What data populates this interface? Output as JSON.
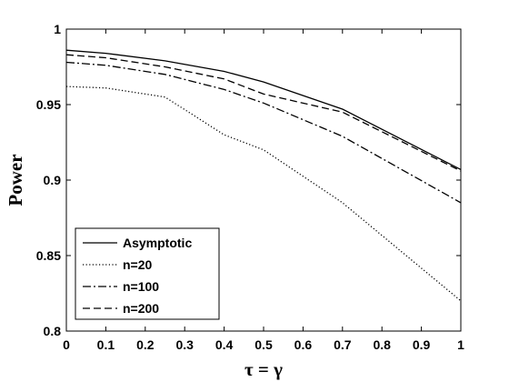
{
  "chart_data": {
    "type": "line",
    "xlabel": "τ = γ",
    "ylabel": "Power",
    "xlim": [
      0,
      1
    ],
    "ylim": [
      0.8,
      1
    ],
    "xticks": [
      "0",
      "0.1",
      "0.2",
      "0.3",
      "0.4",
      "0.5",
      "0.6",
      "0.7",
      "0.8",
      "0.9",
      "1"
    ],
    "yticks": [
      "0.8",
      "0.85",
      "0.9",
      "0.95",
      "1"
    ],
    "grid": false,
    "legend_position": "bottom-left",
    "series": [
      {
        "name": "Asymptotic",
        "style": "solid",
        "x": [
          0,
          0.1,
          0.25,
          0.4,
          0.5,
          0.7,
          1.0
        ],
        "y": [
          0.986,
          0.984,
          0.979,
          0.972,
          0.965,
          0.947,
          0.907
        ]
      },
      {
        "name": "n=20",
        "style": "dotted",
        "x": [
          0,
          0.1,
          0.25,
          0.4,
          0.5,
          0.7,
          1.0
        ],
        "y": [
          0.962,
          0.961,
          0.955,
          0.93,
          0.92,
          0.885,
          0.82
        ]
      },
      {
        "name": "n=100",
        "style": "dashdot",
        "x": [
          0,
          0.1,
          0.25,
          0.4,
          0.5,
          0.7,
          1.0
        ],
        "y": [
          0.978,
          0.976,
          0.97,
          0.96,
          0.951,
          0.929,
          0.885
        ]
      },
      {
        "name": "n=200",
        "style": "dashed",
        "x": [
          0,
          0.1,
          0.25,
          0.4,
          0.5,
          0.7,
          1.0
        ],
        "y": [
          0.983,
          0.981,
          0.975,
          0.967,
          0.957,
          0.945,
          0.906
        ]
      }
    ]
  }
}
